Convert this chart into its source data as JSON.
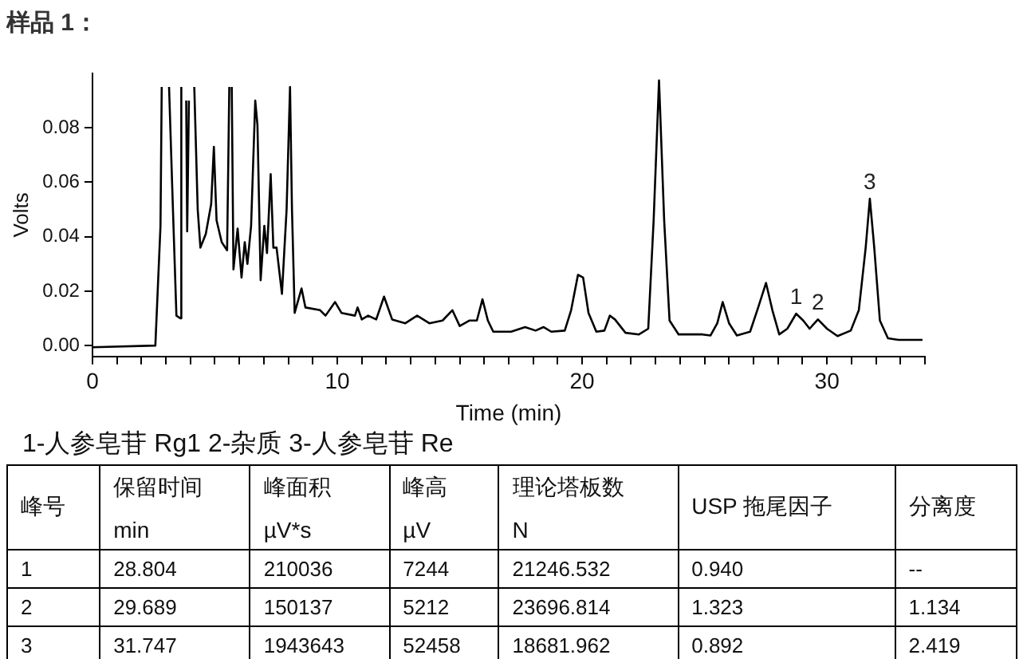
{
  "chart_data": [
    {
      "type": "line",
      "title": "样品 1：",
      "xlabel": "Time (min)",
      "ylabel": "Volts",
      "color": "#000000",
      "x": [
        0,
        2.57,
        2.78,
        2.83,
        2.85,
        3.1,
        3.13,
        3.26,
        3.43,
        3.59,
        3.63,
        3.65,
        3.8,
        3.83,
        3.87,
        3.94,
        3.98,
        4.13,
        4.16,
        4.3,
        4.41,
        4.63,
        4.85,
        4.96,
        5.07,
        5.28,
        5.5,
        5.59,
        5.61,
        5.67,
        5.69,
        5.76,
        5.93,
        6.09,
        6.22,
        6.33,
        6.48,
        6.65,
        6.74,
        6.87,
        7.02,
        7.13,
        7.28,
        7.39,
        7.52,
        7.74,
        7.93,
        8.07,
        8.15,
        8.26,
        8.54,
        8.7,
        9.3,
        9.52,
        9.91,
        10.17,
        10.72,
        10.83,
        11.0,
        11.26,
        11.59,
        11.91,
        12.24,
        12.78,
        13.26,
        13.76,
        14.3,
        14.7,
        15.0,
        15.39,
        15.7,
        15.93,
        16.15,
        16.37,
        17.1,
        17.67,
        18.1,
        18.42,
        18.74,
        19.29,
        19.55,
        19.83,
        20.04,
        20.26,
        20.58,
        20.91,
        21.13,
        21.34,
        21.77,
        22.32,
        22.7,
        22.92,
        23.14,
        23.35,
        23.57,
        23.94,
        24.91,
        25.24,
        25.52,
        25.74,
        26.0,
        26.32,
        26.86,
        27.19,
        27.51,
        27.77,
        28.05,
        28.38,
        28.74,
        29.03,
        29.29,
        29.63,
        30.0,
        30.43,
        30.97,
        31.3,
        31.58,
        31.75,
        31.93,
        32.16,
        32.49,
        32.92,
        33.9
      ],
      "values": [
        -0.0006,
        0,
        0.044,
        0.095,
        null,
        null,
        0.095,
        0.058,
        0.011,
        0.01,
        0.095,
        null,
        null,
        0.09,
        0.042,
        0.09,
        null,
        null,
        0.095,
        0.05,
        0.036,
        0.041,
        0.052,
        0.073,
        0.046,
        0.038,
        0.035,
        0.095,
        null,
        null,
        0.095,
        0.028,
        0.043,
        0.025,
        0.038,
        0.03,
        0.044,
        0.09,
        0.081,
        0.024,
        0.044,
        0.034,
        0.063,
        0.036,
        0.036,
        0.019,
        0.05,
        0.095,
        0.05,
        0.012,
        0.021,
        0.014,
        0.013,
        0.011,
        0.016,
        0.012,
        0.011,
        0.014,
        0.0096,
        0.011,
        0.0096,
        0.018,
        0.0096,
        0.0082,
        0.011,
        0.0082,
        0.0092,
        0.013,
        0.0072,
        0.0092,
        0.0092,
        0.017,
        0.0092,
        0.0051,
        0.0051,
        0.0068,
        0.0055,
        0.0068,
        0.0051,
        0.0055,
        0.013,
        0.026,
        0.025,
        0.012,
        0.0051,
        0.0055,
        0.011,
        0.0096,
        0.0047,
        0.0041,
        0.0062,
        0.046,
        0.0974,
        0.046,
        0.0092,
        0.0041,
        0.0041,
        0.0037,
        0.0082,
        0.016,
        0.0082,
        0.0037,
        0.0051,
        0.014,
        0.023,
        0.013,
        0.0041,
        0.0062,
        0.0117,
        0.0092,
        0.0062,
        0.0096,
        0.0062,
        0.0035,
        0.0055,
        0.013,
        0.036,
        0.054,
        0.036,
        0.0092,
        0.0027,
        0.0021,
        0.0021
      ],
      "xlim": [
        0,
        34
      ],
      "xticks": [
        0,
        {
          "value": 1,
          "label": null
        },
        {
          "value": 2,
          "label": null
        },
        {
          "value": 3,
          "label": null
        },
        {
          "value": 4,
          "label": null
        },
        {
          "value": 5,
          "label": null
        },
        {
          "value": 6,
          "label": null
        },
        {
          "value": 7,
          "label": null
        },
        {
          "value": 8,
          "label": null
        },
        {
          "value": 9,
          "label": null
        },
        10,
        {
          "value": 11,
          "label": null
        },
        {
          "value": 12,
          "label": null
        },
        {
          "value": 13,
          "label": null
        },
        {
          "value": 14,
          "label": null
        },
        {
          "value": 15,
          "label": null
        },
        {
          "value": 16,
          "label": null
        },
        {
          "value": 17,
          "label": null
        },
        {
          "value": 18,
          "label": null
        },
        {
          "value": 19,
          "label": null
        },
        20,
        {
          "value": 21,
          "label": null
        },
        {
          "value": 22,
          "label": null
        },
        {
          "value": 23,
          "label": null
        },
        {
          "value": 24,
          "label": null
        },
        {
          "value": 25,
          "label": null
        },
        {
          "value": 26,
          "label": null
        },
        {
          "value": 27,
          "label": null
        },
        {
          "value": 28,
          "label": null
        },
        {
          "value": 29,
          "label": null
        },
        30,
        {
          "value": 31,
          "label": null
        },
        {
          "value": 32,
          "label": null
        },
        {
          "value": 33,
          "label": null
        },
        {
          "value": 34,
          "label": null
        }
      ],
      "ylim": [
        -0.004,
        0.1
      ],
      "yticks": [
        {
          "value": 0,
          "label": "0.00"
        },
        {
          "value": 0.02,
          "label": "0.02"
        },
        {
          "value": 0.04,
          "label": "0.04"
        },
        {
          "value": 0.06,
          "label": "0.06"
        },
        {
          "value": 0.08,
          "label": "0.08"
        }
      ],
      "annotations": [
        {
          "text": "1",
          "x": 28.74,
          "y": 0.0117
        },
        {
          "text": "2",
          "x": 29.63,
          "y": 0.0096
        },
        {
          "text": "3",
          "x": 31.75,
          "y": 0.054
        }
      ]
    },
    {
      "type": "other",
      "title": "1-人参皂苷 Rg1   2-杂质   3-人参皂苷 Re",
      "categories": [
        "峰号",
        "保留时间",
        "峰面积",
        "峰高",
        "理论塔板数",
        "USP 拖尾因子",
        "分离度"
      ],
      "cell_labels": [
        [
          null,
          "min",
          "µV*s",
          "µV",
          "N",
          null,
          null
        ],
        [
          "1",
          "28.804",
          "210036",
          "7244",
          "21246.532",
          "0.940",
          "--"
        ],
        [
          "2",
          "29.689",
          "150137",
          "5212",
          "23696.814",
          "1.323",
          "1.134"
        ],
        [
          "3",
          "31.747",
          "1943643",
          "52458",
          "18681.962",
          "0.892",
          "2.419"
        ]
      ]
    }
  ]
}
